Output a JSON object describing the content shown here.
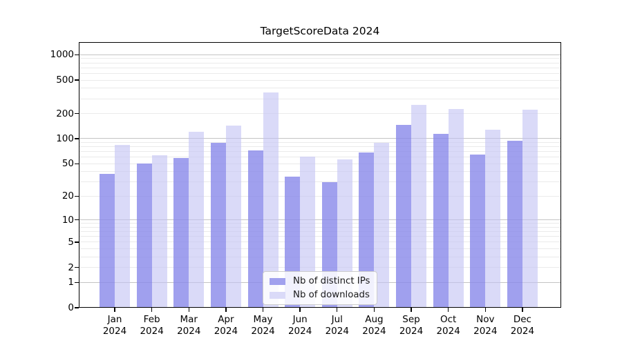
{
  "chart_data": {
    "type": "bar",
    "title": "TargetScoreData 2024",
    "categories": [
      "Jan",
      "Feb",
      "Mar",
      "Apr",
      "May",
      "Jun",
      "Jul",
      "Aug",
      "Sep",
      "Oct",
      "Nov",
      "Dec"
    ],
    "category_year": "2024",
    "series": [
      {
        "name": "Nb of distinct IPs",
        "legend_color": "#a1a1ee",
        "fill": "rgba(136,136,234,0.8)",
        "values": [
          38,
          50,
          59,
          89,
          73,
          35,
          30,
          69,
          146,
          115,
          64,
          95
        ]
      },
      {
        "name": "Nb of downloads",
        "legend_color": "#dadaf8",
        "fill": "rgba(193,193,243,0.6)",
        "values": [
          84,
          63,
          121,
          143,
          355,
          61,
          56,
          90,
          256,
          226,
          127,
          223
        ]
      }
    ],
    "y_ticks": [
      0,
      1,
      2,
      5,
      10,
      20,
      50,
      100,
      200,
      500,
      1000
    ],
    "y_scale": "log10(1+x)",
    "ylim_top_approx": 1430,
    "y_gridlines_major": [
      1,
      10,
      100,
      1000
    ],
    "y_gridlines_minor": [
      2,
      3,
      4,
      5,
      6,
      7,
      8,
      9,
      20,
      30,
      40,
      50,
      60,
      70,
      80,
      90,
      200,
      300,
      400,
      500,
      600,
      700,
      800,
      900
    ],
    "grid": true,
    "legend_position": "lower center",
    "colors": {
      "bar_dark": "#a1a1ee",
      "bar_light": "#dadaf8",
      "grid_major": "#c3c3c3",
      "grid_minor": "#eaeaea",
      "spine": "#000000"
    }
  }
}
